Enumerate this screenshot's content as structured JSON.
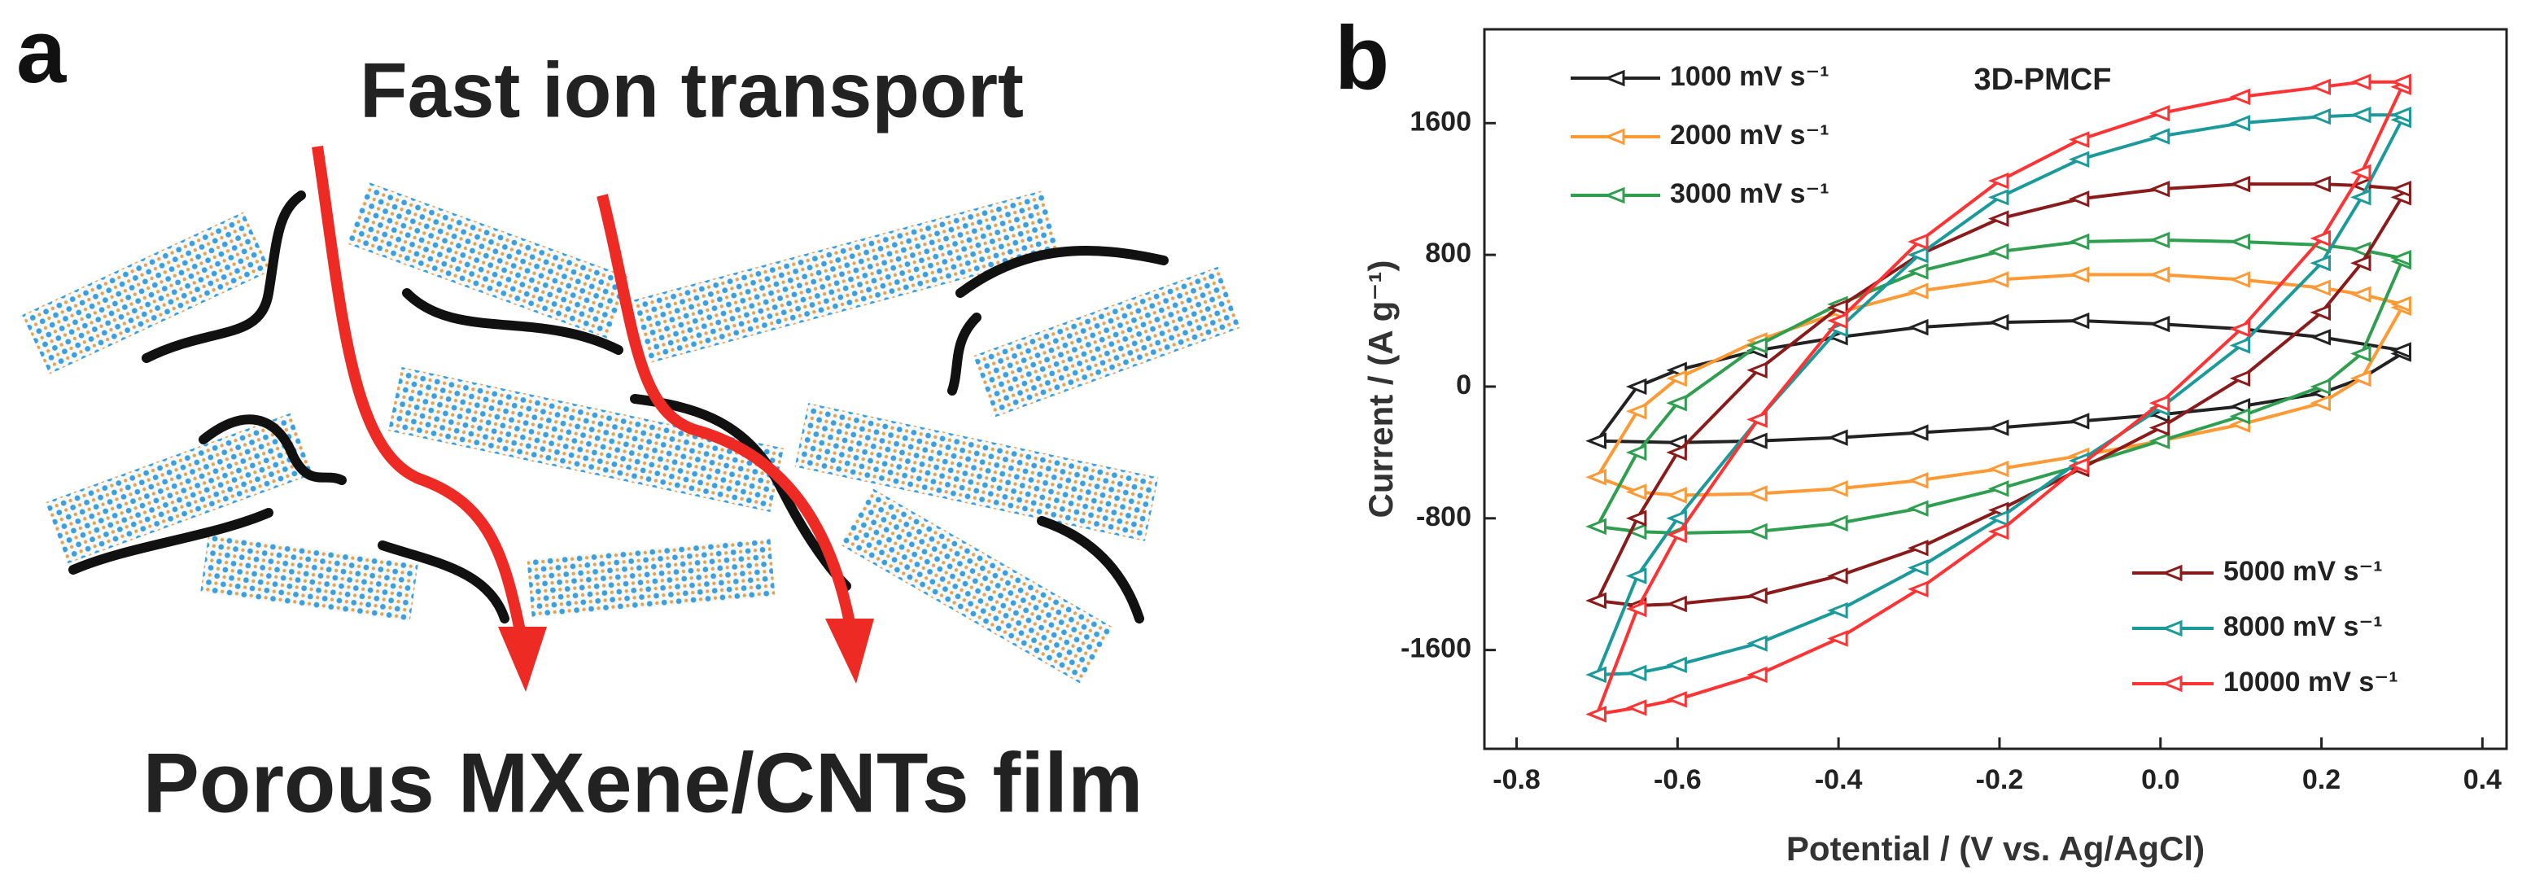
{
  "panel_a": {
    "label": "a",
    "top_text": "Fast ion transport",
    "bottom_text": "Porous MXene/CNTs film"
  },
  "chart_data": {
    "type": "line",
    "panel_label": "b",
    "annotation": "3D-PMCF",
    "x_label": "Potential / (V vs. Ag/AgCl)",
    "y_label": "Current / (A g⁻¹)",
    "xlim": [
      -0.84,
      0.43
    ],
    "xticks": [
      -0.8,
      -0.6,
      -0.4,
      -0.2,
      {
        "value": 0,
        "label": "0.0"
      },
      0.2,
      0.4
    ],
    "ylim": [
      -2200,
      2170
    ],
    "yticks": [
      -1600,
      -800,
      0,
      800,
      1600
    ],
    "marker": "triangle-left",
    "series": [
      {
        "name": "1000 mV s⁻¹",
        "color": "#222222",
        "legend": "upper left",
        "x": [
          -0.7,
          -0.6,
          -0.5,
          -0.4,
          -0.3,
          -0.2,
          -0.1,
          0,
          0.1,
          0.2,
          0.25,
          0.3,
          0.3,
          0.2,
          0.1,
          0,
          -0.1,
          -0.2,
          -0.3,
          -0.4,
          -0.5,
          -0.6,
          -0.65,
          -0.7
        ],
        "values": [
          -330,
          -340,
          -330,
          -310,
          -280,
          -250,
          -210,
          -170,
          -120,
          -40,
          50,
          200,
          220,
          300,
          350,
          380,
          400,
          390,
          360,
          300,
          220,
          100,
          0,
          -330
        ]
      },
      {
        "name": "2000 mV s⁻¹",
        "color": "#ff9933",
        "legend": "upper left",
        "x": [
          -0.7,
          -0.65,
          -0.6,
          -0.5,
          -0.4,
          -0.3,
          -0.2,
          -0.1,
          0,
          0.1,
          0.2,
          0.25,
          0.3,
          0.3,
          0.25,
          0.2,
          0.1,
          0,
          -0.1,
          -0.2,
          -0.3,
          -0.4,
          -0.5,
          -0.6,
          -0.65,
          -0.7
        ],
        "values": [
          -550,
          -640,
          -660,
          -650,
          -620,
          -570,
          -500,
          -420,
          -330,
          -230,
          -100,
          50,
          480,
          500,
          560,
          600,
          650,
          680,
          680,
          650,
          580,
          450,
          280,
          50,
          -150,
          -550
        ]
      },
      {
        "name": "3000 mV s⁻¹",
        "color": "#2e9e4f",
        "legend": "upper left",
        "x": [
          -0.7,
          -0.65,
          -0.6,
          -0.5,
          -0.4,
          -0.3,
          -0.2,
          -0.1,
          0,
          0.1,
          0.2,
          0.25,
          0.3,
          0.3,
          0.25,
          0.2,
          0.1,
          0,
          -0.1,
          -0.2,
          -0.3,
          -0.4,
          -0.5,
          -0.6,
          -0.65,
          -0.7
        ],
        "values": [
          -850,
          -880,
          -890,
          -880,
          -830,
          -740,
          -620,
          -480,
          -330,
          -180,
          0,
          200,
          760,
          780,
          830,
          860,
          880,
          890,
          880,
          820,
          700,
          500,
          250,
          -100,
          -400,
          -850
        ]
      },
      {
        "name": "5000 mV s⁻¹",
        "color": "#8b1a1a",
        "legend": "lower right",
        "x": [
          -0.7,
          -0.65,
          -0.6,
          -0.5,
          -0.4,
          -0.3,
          -0.2,
          -0.1,
          0,
          0.1,
          0.2,
          0.25,
          0.3,
          0.3,
          0.25,
          0.2,
          0.1,
          0,
          -0.1,
          -0.2,
          -0.3,
          -0.4,
          -0.5,
          -0.6,
          -0.65,
          -0.7
        ],
        "values": [
          -1300,
          -1330,
          -1320,
          -1270,
          -1150,
          -980,
          -750,
          -500,
          -250,
          50,
          450,
          750,
          1150,
          1200,
          1220,
          1230,
          1230,
          1200,
          1140,
          1020,
          800,
          480,
          100,
          -400,
          -800,
          -1300
        ]
      },
      {
        "name": "8000 mV s⁻¹",
        "color": "#1a9a9a",
        "legend": "lower right",
        "x": [
          -0.7,
          -0.65,
          -0.6,
          -0.5,
          -0.4,
          -0.3,
          -0.2,
          -0.1,
          0,
          0.1,
          0.2,
          0.25,
          0.3,
          0.3,
          0.25,
          0.2,
          0.1,
          0,
          -0.1,
          -0.2,
          -0.3,
          -0.4,
          -0.5,
          -0.6,
          -0.65,
          -0.7
        ],
        "values": [
          -1750,
          -1740,
          -1690,
          -1560,
          -1360,
          -1100,
          -800,
          -450,
          -130,
          250,
          750,
          1150,
          1620,
          1650,
          1650,
          1640,
          1600,
          1520,
          1380,
          1150,
          800,
          350,
          -200,
          -800,
          -1150,
          -1750
        ]
      },
      {
        "name": "10000 mV s⁻¹",
        "color": "#ff3333",
        "legend": "lower right",
        "x": [
          -0.7,
          -0.65,
          -0.6,
          -0.5,
          -0.4,
          -0.3,
          -0.2,
          -0.1,
          0,
          0.1,
          0.2,
          0.25,
          0.3,
          0.3,
          0.25,
          0.2,
          0.1,
          0,
          -0.1,
          -0.2,
          -0.3,
          -0.4,
          -0.5,
          -0.6,
          -0.65,
          -0.7
        ],
        "values": [
          -1990,
          -1950,
          -1900,
          -1750,
          -1530,
          -1230,
          -880,
          -480,
          -100,
          350,
          900,
          1300,
          1820,
          1850,
          1850,
          1820,
          1760,
          1660,
          1500,
          1250,
          880,
          400,
          -200,
          -900,
          -1350,
          -1990
        ]
      }
    ]
  }
}
